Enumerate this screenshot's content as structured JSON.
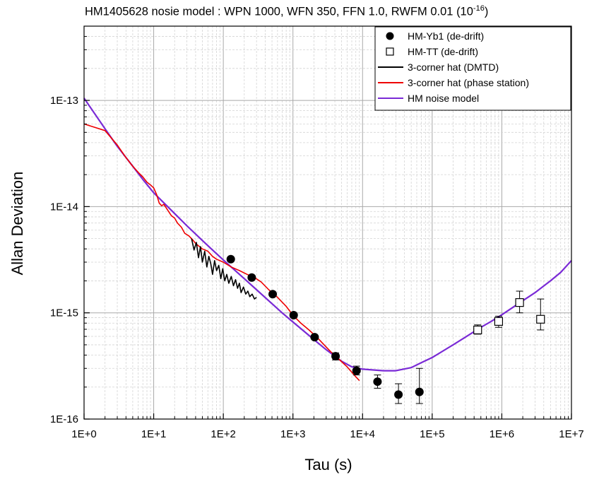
{
  "chart_data": {
    "type": "scatter",
    "title": "HM1405628 nosie model : WPN 1000, WFN 350, FFN 1.0, RWFM 0.01 (10",
    "title_sup": "-16",
    "title_end": ")",
    "xlabel": "Tau (s)",
    "ylabel": "Allan Deviation",
    "xscale": "log",
    "yscale": "log",
    "xlim": [
      1,
      10000000
    ],
    "ylim": [
      1e-16,
      5e-13
    ],
    "grid": true,
    "legend_position": "top-right",
    "x_tick_labels": [
      "1E+0",
      "1E+1",
      "1E+2",
      "1E+3",
      "1E+4",
      "1E+5",
      "1E+6",
      "1E+7"
    ],
    "y_tick_labels": [
      "1E-16",
      "1E-15",
      "1E-14",
      "1E-13"
    ],
    "x_tick_values": [
      1,
      10,
      100,
      1000,
      10000,
      100000,
      1000000,
      10000000
    ],
    "y_tick_values": [
      1e-16,
      1e-15,
      1e-14,
      1e-13
    ],
    "series": [
      {
        "name": "HM-Yb1 (de-drift)",
        "marker": "filled-circle",
        "color": "#000000",
        "x": [
          128,
          256,
          512,
          1024,
          2048,
          4096,
          8192,
          16384,
          32768,
          65536
        ],
        "y": [
          3.2e-15,
          2.15e-15,
          1.5e-15,
          9.5e-16,
          5.9e-16,
          3.9e-16,
          2.85e-16,
          2.25e-16,
          1.7e-16,
          1.8e-16
        ],
        "err_low": [
          null,
          null,
          null,
          null,
          null,
          3.6e-16,
          2.6e-16,
          1.95e-16,
          1.4e-16,
          1.4e-16
        ],
        "err_high": [
          null,
          null,
          null,
          null,
          null,
          4.2e-16,
          3.15e-16,
          2.6e-16,
          2.15e-16,
          3e-16
        ]
      },
      {
        "name": "HM-TT (de-drift)",
        "marker": "open-square",
        "color": "#000000",
        "x": [
          450000,
          900000,
          1800000,
          3600000
        ],
        "y": [
          6.9e-16,
          8.3e-16,
          1.25e-15,
          8.7e-16
        ],
        "err_low": [
          6.3e-16,
          7.3e-16,
          1e-15,
          6.9e-16
        ],
        "err_high": [
          7.7e-16,
          9.3e-16,
          1.6e-15,
          1.35e-15
        ]
      },
      {
        "name": "3-corner hat (DMTD)",
        "type": "line",
        "color": "#000000",
        "x": [
          35,
          38,
          41,
          44,
          47,
          50,
          54,
          58,
          62,
          66,
          70,
          75,
          80,
          86,
          92,
          98,
          105,
          112,
          120,
          130,
          140,
          150,
          160,
          170,
          180,
          195,
          210,
          225,
          240,
          260,
          280,
          300
        ],
        "y": [
          5e-15,
          3.9e-15,
          4.6e-15,
          3.3e-15,
          4.2e-15,
          3e-15,
          3.8e-15,
          2.7e-15,
          3.4e-15,
          2.9e-15,
          2.3e-15,
          3.1e-15,
          2.5e-15,
          2.8e-15,
          2.1e-15,
          2.6e-15,
          2e-15,
          2.3e-15,
          1.9e-15,
          2.2e-15,
          1.8e-15,
          2.05e-15,
          1.7e-15,
          1.9e-15,
          1.55e-15,
          1.75e-15,
          1.5e-15,
          1.6e-15,
          1.42e-15,
          1.5e-15,
          1.35e-15,
          1.4e-15
        ]
      },
      {
        "name": "3-corner hat (phase station)",
        "type": "line",
        "color": "#ee0000",
        "x": [
          1,
          2,
          3,
          4,
          5,
          6,
          7,
          8,
          9,
          10,
          11,
          12,
          13,
          14,
          16,
          18,
          20,
          22,
          25,
          28,
          32,
          36,
          40,
          50,
          60,
          70,
          80,
          100,
          130,
          170,
          220,
          280,
          350,
          450,
          600,
          800,
          1000,
          1300,
          1700,
          2200,
          2800,
          3500,
          4500,
          6000,
          8000,
          9000
        ],
        "y": [
          6e-14,
          5.2e-14,
          3.8e-14,
          2.9e-14,
          2.4e-14,
          2.1e-14,
          1.9e-14,
          1.7e-14,
          1.6e-14,
          1.5e-14,
          1.3e-14,
          1.08e-14,
          1.02e-14,
          1.05e-14,
          9.2e-15,
          8.2e-15,
          7.8e-15,
          7e-15,
          6.4e-15,
          5.6e-15,
          5.3e-15,
          4.9e-15,
          4.5e-15,
          4e-15,
          3.8e-15,
          3.4e-15,
          3.2e-15,
          3e-15,
          2.7e-15,
          2.5e-15,
          2.3e-15,
          2.15e-15,
          1.95e-15,
          1.65e-15,
          1.4e-15,
          1.15e-15,
          9.5e-16,
          8e-16,
          6.9e-16,
          5.9e-16,
          5e-16,
          4.3e-16,
          3.7e-16,
          3.1e-16,
          2.5e-16,
          2.3e-16
        ]
      },
      {
        "name": "HM noise model",
        "type": "line",
        "color": "#7a2ad6",
        "x": [
          1,
          2,
          3,
          5,
          7,
          10,
          20,
          30,
          50,
          70,
          100,
          200,
          300,
          500,
          700,
          1000,
          2000,
          3000,
          5000,
          7000,
          10000,
          20000,
          30000,
          50000,
          70000,
          100000,
          200000,
          300000,
          500000,
          700000,
          1000000,
          2000000,
          3000000,
          5000000,
          7000000,
          10000000
        ],
        "y": [
          1.05e-13,
          5.4e-14,
          3.7e-14,
          2.4e-14,
          1.8e-14,
          1.35e-14,
          8.6e-15,
          6.6e-15,
          4.8e-15,
          3.9e-15,
          3.15e-15,
          2.1e-15,
          1.65e-15,
          1.22e-15,
          1e-15,
          8.2e-16,
          5.6e-16,
          4.5e-16,
          3.5e-16,
          3.1e-16,
          2.95e-16,
          2.85e-16,
          2.85e-16,
          3.05e-16,
          3.4e-16,
          3.8e-16,
          5e-16,
          5.9e-16,
          7.3e-16,
          8.3e-16,
          9.6e-16,
          1.3e-15,
          1.55e-15,
          2e-15,
          2.4e-15,
          3.1e-15
        ]
      }
    ]
  }
}
